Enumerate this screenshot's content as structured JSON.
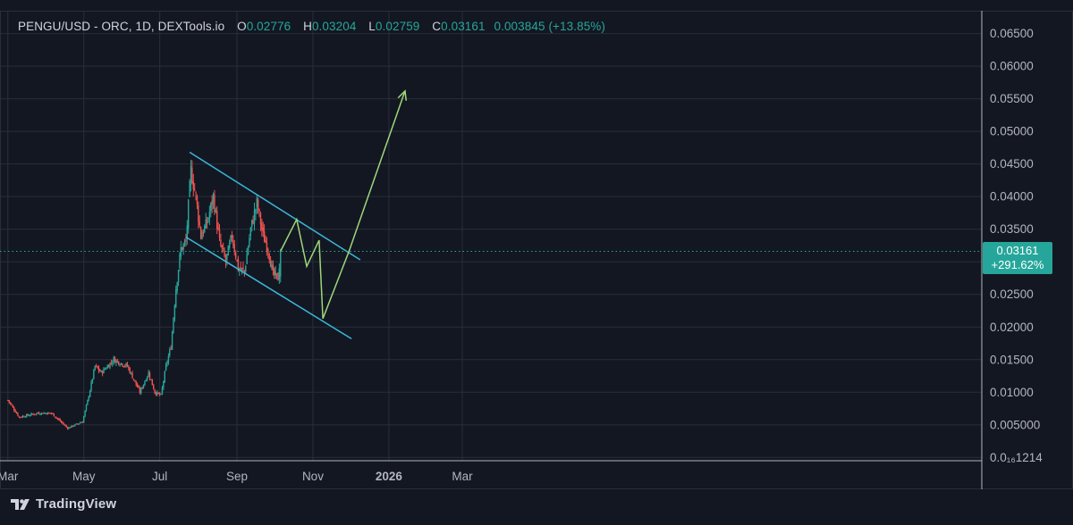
{
  "header": {
    "symbol": "PENGU/USD - ORC, 1D, DEXTools.io",
    "open_label": "O",
    "open_value": "0.02776",
    "high_label": "H",
    "high_value": "0.03204",
    "low_label": "L",
    "low_value": "0.02759",
    "close_label": "C",
    "close_value": "0.03161",
    "change_text": "0.003845 (+13.85%)"
  },
  "price_tag": {
    "price": "0.03161",
    "change_pct": "+291.62%"
  },
  "footer": {
    "brand": "TradingView"
  },
  "colors": {
    "background": "#131722",
    "up": "#26a69a",
    "down": "#ef5350",
    "channel": "#3ab8d8",
    "projection": "#9fd67a",
    "grid": "#2a2e39"
  },
  "chart_data": {
    "type": "candlestick",
    "x_tick_labels": [
      "Mar",
      "May",
      "Jul",
      "Sep",
      "Nov",
      "2026",
      "Mar"
    ],
    "y_tick_labels": [
      "0.06500",
      "0.06000",
      "0.05500",
      "0.05000",
      "0.04500",
      "0.04000",
      "0.03500",
      "0.03000",
      "0.02500",
      "0.02000",
      "0.01500",
      "0.01000",
      "0.005000",
      "0.0₁₆1214"
    ],
    "y_tick_values": [
      0.065,
      0.06,
      0.055,
      0.05,
      0.045,
      0.04,
      0.035,
      0.03,
      0.025,
      0.02,
      0.015,
      0.01,
      0.005,
      0
    ],
    "ylim": [
      -0.0005,
      0.0685
    ],
    "grid": true,
    "last_price": 0.03161,
    "close_path": [
      [
        "2025-03-01",
        0.0088
      ],
      [
        "2025-03-10",
        0.0062
      ],
      [
        "2025-03-25",
        0.0068
      ],
      [
        "2025-04-05",
        0.0068
      ],
      [
        "2025-04-18",
        0.0045
      ],
      [
        "2025-04-30",
        0.0055
      ],
      [
        "2025-05-05",
        0.0095
      ],
      [
        "2025-05-10",
        0.014
      ],
      [
        "2025-05-15",
        0.013
      ],
      [
        "2025-05-25",
        0.015
      ],
      [
        "2025-06-05",
        0.014
      ],
      [
        "2025-06-15",
        0.01
      ],
      [
        "2025-06-22",
        0.013
      ],
      [
        "2025-06-27",
        0.01
      ],
      [
        "2025-07-02",
        0.0095
      ],
      [
        "2025-07-06",
        0.014
      ],
      [
        "2025-07-10",
        0.017
      ],
      [
        "2025-07-14",
        0.026
      ],
      [
        "2025-07-18",
        0.032
      ],
      [
        "2025-07-22",
        0.033
      ],
      [
        "2025-07-26",
        0.044
      ],
      [
        "2025-07-30",
        0.04
      ],
      [
        "2025-08-03",
        0.034
      ],
      [
        "2025-08-08",
        0.036
      ],
      [
        "2025-08-13",
        0.04
      ],
      [
        "2025-08-18",
        0.033
      ],
      [
        "2025-08-23",
        0.03
      ],
      [
        "2025-08-28",
        0.034
      ],
      [
        "2025-09-02",
        0.029
      ],
      [
        "2025-09-07",
        0.0285
      ],
      [
        "2025-09-12",
        0.035
      ],
      [
        "2025-09-17",
        0.039
      ],
      [
        "2025-09-22",
        0.034
      ],
      [
        "2025-09-26",
        0.032
      ],
      [
        "2025-09-30",
        0.028
      ],
      [
        "2025-10-04",
        0.0275
      ],
      [
        "2025-10-06",
        0.0316
      ]
    ],
    "channel_upper": [
      [
        "2025-07-25",
        0.0468
      ],
      [
        "2025-12-09",
        0.0303
      ]
    ],
    "channel_lower": [
      [
        "2025-07-22",
        0.0338
      ],
      [
        "2025-12-02",
        0.0182
      ]
    ],
    "projection_path": [
      [
        "2025-10-06",
        0.0316
      ],
      [
        "2025-10-19",
        0.0365
      ],
      [
        "2025-10-27",
        0.0293
      ],
      [
        "2025-11-06",
        0.0333
      ],
      [
        "2025-11-09",
        0.0213
      ],
      [
        "2025-11-30",
        0.0316
      ],
      [
        "2026-01-14",
        0.0562
      ]
    ]
  }
}
